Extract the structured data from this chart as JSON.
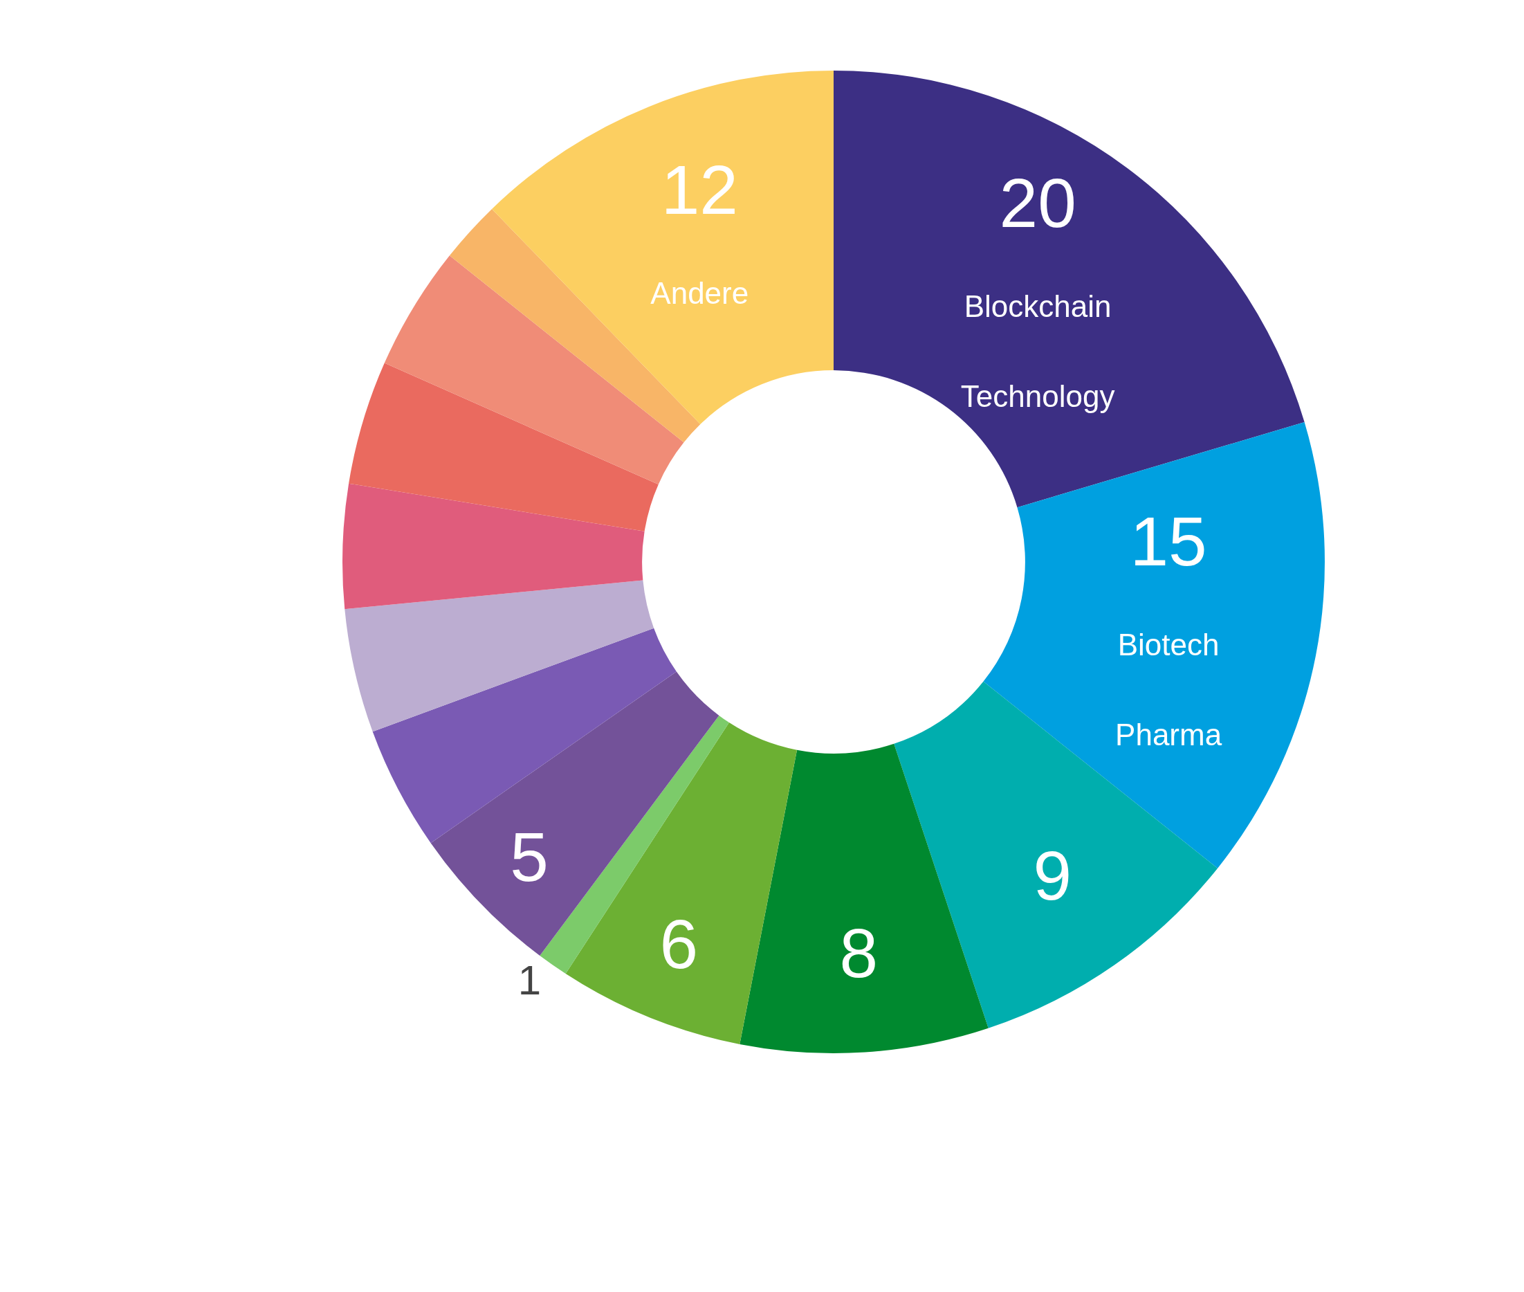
{
  "chart_data": {
    "type": "donut",
    "categories": [
      "Blockchain Technology",
      "Biotech Pharma",
      null,
      null,
      null,
      null,
      null,
      null,
      null,
      null,
      null,
      null,
      null,
      "Andere"
    ],
    "values": [
      20,
      15,
      9,
      8,
      6,
      1,
      5,
      4,
      4,
      4,
      4,
      4,
      2,
      12
    ],
    "value_labels": [
      "20",
      "15",
      "9",
      "8",
      "6",
      "1",
      "5",
      null,
      null,
      null,
      null,
      null,
      null,
      "12"
    ],
    "colors": [
      "#3c2f84",
      "#00a0e0",
      "#00aeae",
      "#00892f",
      "#6cb033",
      "#7ccb6a",
      "#735299",
      "#7a5ab4",
      "#bcadd1",
      "#e05c7c",
      "#ea6a5f",
      "#f08c77",
      "#f8b567",
      "#fccf61"
    ]
  }
}
